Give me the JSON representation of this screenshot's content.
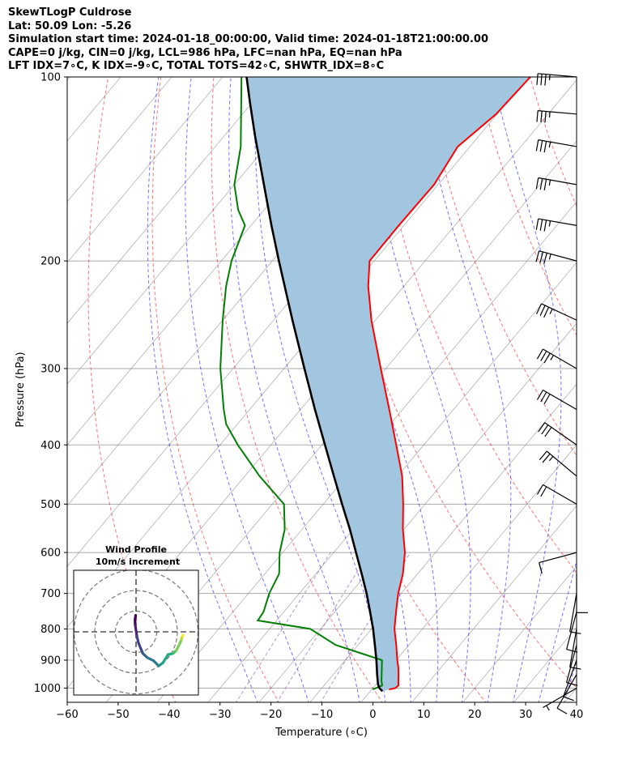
{
  "header": {
    "line1": "SkewTLogP Culdrose",
    "line2": "Lat: 50.09   Lon: -5.26",
    "line3": "Simulation start time: 2024-01-18_00:00:00, Valid time: 2024-01-18T21:00:00.00",
    "line4": "CAPE=0 j/kg, CIN=0 j/kg, LCL=986 hPa, LFC=nan hPa, EQ=nan hPa",
    "line5": "LFT IDX=7∘C, K IDX=-9∘C, TOTAL TOTS=42∘C, SHWTR_IDX=8∘C"
  },
  "chart_data": {
    "type": "line",
    "subtype": "skew-T log-P",
    "xlabel": "Temperature (∘C)",
    "ylabel": "Pressure (hPa)",
    "xlim": [
      -60,
      40
    ],
    "ylim_hpa": [
      1050,
      100
    ],
    "y_scale": "log",
    "x_ticks": [
      "−60",
      "−50",
      "−40",
      "−30",
      "−20",
      "−10",
      "0",
      "10",
      "20",
      "30",
      "40"
    ],
    "y_ticks": [
      "100",
      "200",
      "300",
      "400",
      "500",
      "600",
      "700",
      "800",
      "900",
      "1000"
    ],
    "colors": {
      "temperature": "#ff0000",
      "dewpoint": "#008000",
      "parcel": "#000000",
      "cin_shading": "#a3c6e0",
      "dry_adiabats": "#ff0000",
      "moist_adiabats": "#0000ff",
      "mixing_ratio": "#8e44ad",
      "isotherms": "#808080"
    },
    "series": [
      {
        "key": "temperature",
        "p": [
          1005,
          1000,
          990,
          975,
          950,
          925,
          900,
          850,
          800,
          750,
          700,
          650,
          600,
          550,
          500,
          450,
          400,
          350,
          300,
          250,
          220,
          200,
          175,
          150,
          130,
          115,
          100
        ],
        "t": [
          3.4,
          4.4,
          4.6,
          3.9,
          2.8,
          1.6,
          0.2,
          -2.5,
          -5.5,
          -8.0,
          -10.6,
          -12.9,
          -16.0,
          -20.2,
          -24.3,
          -29.1,
          -35.4,
          -42.6,
          -51.0,
          -60.8,
          -67.0,
          -70.9,
          -71.0,
          -70.8,
          -72.4,
          -70.2,
          -69.6
        ]
      },
      {
        "key": "dewpoint",
        "p": [
          1005,
          990,
          975,
          950,
          900,
          850,
          800,
          775,
          750,
          700,
          650,
          600,
          550,
          500,
          450,
          400,
          370,
          350,
          300,
          250,
          220,
          200,
          175,
          165,
          150,
          130,
          100
        ],
        "t": [
          0.2,
          1.4,
          0.6,
          -0.5,
          -2.8,
          -14.4,
          -22.0,
          -33.7,
          -34.0,
          -35.9,
          -37.2,
          -40.6,
          -43.4,
          -47.7,
          -57.1,
          -66.5,
          -72.2,
          -75.1,
          -82.5,
          -90.0,
          -94.9,
          -98.0,
          -101.2,
          -105.1,
          -110.0,
          -115.0,
          -126.3
        ]
      },
      {
        "key": "parcel",
        "p": [
          1012,
          1000,
          986,
          950,
          900,
          850,
          800,
          750,
          700,
          650,
          600,
          550,
          500,
          450,
          400,
          350,
          300,
          250,
          200,
          175,
          150,
          125,
          110,
          100
        ],
        "t": [
          2.4,
          1.3,
          0.4,
          -1.4,
          -3.9,
          -6.7,
          -9.7,
          -13.1,
          -16.8,
          -21.0,
          -25.6,
          -30.6,
          -36.3,
          -42.5,
          -49.4,
          -57.2,
          -66.0,
          -76.3,
          -88.7,
          -96.0,
          -104.2,
          -113.9,
          -120.5,
          -125.3
        ]
      }
    ],
    "wind_barbs": [
      {
        "p": 1000,
        "speed_kt": 5,
        "dir_deg": 240
      },
      {
        "p": 950,
        "speed_kt": 10,
        "dir_deg": 210
      },
      {
        "p": 900,
        "speed_kt": 10,
        "dir_deg": 200
      },
      {
        "p": 850,
        "speed_kt": 10,
        "dir_deg": 195
      },
      {
        "p": 800,
        "speed_kt": 10,
        "dir_deg": 190
      },
      {
        "p": 750,
        "speed_kt": 10,
        "dir_deg": 195
      },
      {
        "p": 700,
        "speed_kt": 10,
        "dir_deg": 190
      },
      {
        "p": 650,
        "speed_kt": 10,
        "dir_deg": 180
      },
      {
        "p": 600,
        "speed_kt": 10,
        "dir_deg": 255
      },
      {
        "p": 500,
        "speed_kt": 20,
        "dir_deg": 300
      },
      {
        "p": 450,
        "speed_kt": 25,
        "dir_deg": 310
      },
      {
        "p": 400,
        "speed_kt": 30,
        "dir_deg": 305
      },
      {
        "p": 350,
        "speed_kt": 30,
        "dir_deg": 300
      },
      {
        "p": 300,
        "speed_kt": 35,
        "dir_deg": 300
      },
      {
        "p": 250,
        "speed_kt": 35,
        "dir_deg": 295
      },
      {
        "p": 200,
        "speed_kt": 35,
        "dir_deg": 285
      },
      {
        "p": 175,
        "speed_kt": 35,
        "dir_deg": 280
      },
      {
        "p": 150,
        "speed_kt": 35,
        "dir_deg": 280
      },
      {
        "p": 130,
        "speed_kt": 35,
        "dir_deg": 280
      },
      {
        "p": 115,
        "speed_kt": 35,
        "dir_deg": 275
      },
      {
        "p": 100,
        "speed_kt": 35,
        "dir_deg": 275
      }
    ],
    "hodograph": {
      "title_line1": "Wind Profile",
      "title_line2": "10m/s increment",
      "rings_ms": [
        10,
        20,
        30
      ],
      "u_ms": [
        -0.2,
        -0.5,
        -0.4,
        0.4,
        1.2,
        3.3,
        5.5,
        8.5,
        11.0,
        13.0,
        15.5,
        17.9,
        19.5,
        21.5,
        22.0,
        22.5,
        22.8
      ],
      "v_ms": [
        8.0,
        5.8,
        3.2,
        -2.0,
        -5.5,
        -10.5,
        -12.5,
        -14.0,
        -16.5,
        -15.0,
        -11.0,
        -10.5,
        -9.0,
        -5.0,
        -3.5,
        -2.0,
        -1.5
      ]
    }
  }
}
